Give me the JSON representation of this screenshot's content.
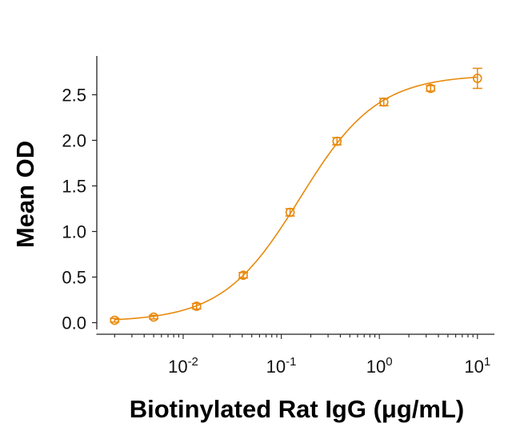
{
  "chart_data": {
    "type": "scatter",
    "title": "",
    "xlabel": "Biotinylated Rat IgG (μg/mL)",
    "ylabel": "Mean OD",
    "xscale": "log",
    "xlim": [
      0.0012,
      20
    ],
    "ylim": [
      -0.1,
      2.95
    ],
    "grid": false,
    "legend": "none",
    "color": "#E8890C",
    "x_ticks": [
      {
        "value": 0.01,
        "base": "10",
        "exp": "-2"
      },
      {
        "value": 0.1,
        "base": "10",
        "exp": "-1"
      },
      {
        "value": 1,
        "base": "10",
        "exp": "0"
      },
      {
        "value": 10,
        "base": "10",
        "exp": "1"
      }
    ],
    "y_ticks": [
      {
        "value": 0.0,
        "label": "0.0"
      },
      {
        "value": 0.5,
        "label": "0.5"
      },
      {
        "value": 1.0,
        "label": "1.0"
      },
      {
        "value": 1.5,
        "label": "1.5"
      },
      {
        "value": 2.0,
        "label": "2.0"
      },
      {
        "value": 2.5,
        "label": "2.5"
      }
    ],
    "series": [
      {
        "name": "Mean OD",
        "marker": "open-circle",
        "x": [
          0.002,
          0.005,
          0.0137,
          0.041,
          0.123,
          0.37,
          1.11,
          3.33,
          10
        ],
        "y": [
          0.026,
          0.061,
          0.18,
          0.52,
          1.21,
          1.99,
          2.42,
          2.57,
          2.68
        ],
        "error": [
          0.02,
          0.02,
          0.03,
          0.03,
          0.04,
          0.04,
          0.04,
          0.03,
          0.11
        ]
      }
    ],
    "fit": {
      "model": "4PL",
      "bottom": 0.01,
      "top": 2.72,
      "ec50": 0.155,
      "hill": 1.1,
      "x_range": [
        0.002,
        10
      ]
    }
  }
}
